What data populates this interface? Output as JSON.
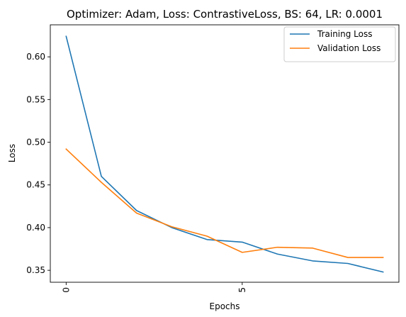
{
  "chart_data": {
    "type": "line",
    "title": "Optimizer: Adam, Loss: ContrastiveLoss, BS: 64, LR: 0.0001",
    "xlabel": "Epochs",
    "ylabel": "Loss",
    "x": [
      0,
      1,
      2,
      3,
      4,
      5,
      6,
      7,
      8,
      9
    ],
    "xlim": [
      -0.45,
      9.45
    ],
    "ylim": [
      0.336,
      0.6375
    ],
    "x_ticks": [
      0,
      5
    ],
    "x_tick_labels": [
      "0",
      "5"
    ],
    "x_tick_label_rotation": 90,
    "y_ticks": [
      0.35,
      0.4,
      0.45,
      0.5,
      0.55,
      0.6
    ],
    "y_tick_labels": [
      "0.35",
      "0.40",
      "0.45",
      "0.50",
      "0.55",
      "0.60"
    ],
    "grid": false,
    "legend_position": "top-right",
    "series": [
      {
        "name": "Training Loss",
        "color": "#1f77b4",
        "values": [
          0.624,
          0.46,
          0.42,
          0.4,
          0.386,
          0.383,
          0.369,
          0.361,
          0.358,
          0.348
        ]
      },
      {
        "name": "Validation Loss",
        "color": "#ff7f0e",
        "values": [
          0.492,
          0.453,
          0.417,
          0.401,
          0.39,
          0.371,
          0.377,
          0.376,
          0.365,
          0.365
        ]
      }
    ]
  }
}
